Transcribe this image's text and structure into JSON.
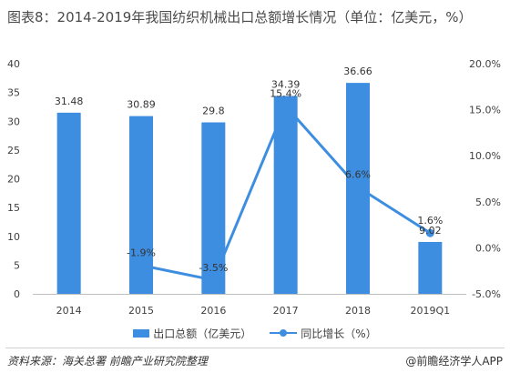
{
  "title": "图表8：2014-2019年我国纺织机械出口总额增长情况（单位：亿美元，%）",
  "chart_data": {
    "type": "bar",
    "categories": [
      "2014",
      "2015",
      "2016",
      "2017",
      "2018",
      "2019Q1"
    ],
    "series": [
      {
        "name": "出口总额（亿美元）",
        "type": "bar",
        "axis": "left",
        "values": [
          31.48,
          30.89,
          29.8,
          34.39,
          36.66,
          9.02
        ],
        "labels": [
          "31.48",
          "30.89",
          "29.8",
          "34.39",
          "36.66",
          "9.02"
        ]
      },
      {
        "name": "同比增长（%）",
        "type": "line",
        "axis": "right",
        "values": [
          null,
          -1.9,
          -3.5,
          15.4,
          6.6,
          1.6
        ],
        "labels": [
          "",
          "-1.9%",
          "-3.5%",
          "15.4%",
          "6.6%",
          "1.6%"
        ]
      }
    ],
    "y_left": {
      "min": 0,
      "max": 40,
      "ticks": [
        "0",
        "5",
        "10",
        "15",
        "20",
        "25",
        "30",
        "35",
        "40"
      ]
    },
    "y_right": {
      "min": -5,
      "max": 20,
      "ticks": [
        "-5.0%",
        "0.0%",
        "5.0%",
        "10.0%",
        "15.0%",
        "20.0%"
      ]
    },
    "grid": false,
    "legend_position": "bottom",
    "color": "#3d8ee0"
  },
  "footer": {
    "source": "资料来源：海关总署 前瞻产业研究院整理",
    "brand": "@前瞻经济学人APP"
  }
}
